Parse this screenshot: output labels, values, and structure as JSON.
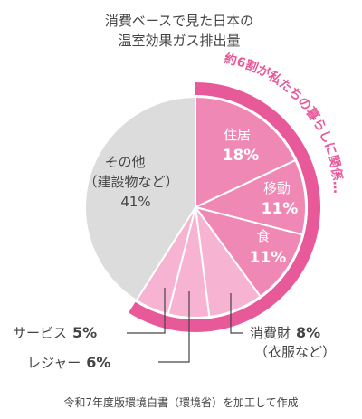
{
  "chart_data": {
    "type": "pie",
    "title": [
      "消費ベースで見た日本の",
      "温室効果ガス排出量"
    ],
    "highlight_label": "約6割が私たちの暮らしに関係…",
    "slices": [
      {
        "label": "住居",
        "value": 18,
        "value_text": "18%",
        "color": "#f088b6"
      },
      {
        "label": "移動",
        "value": 11,
        "value_text": "11%",
        "color": "#f088b6"
      },
      {
        "label": "食",
        "value": 11,
        "value_text": "11%",
        "color": "#f088b6"
      },
      {
        "label": "消費財",
        "value": 8,
        "value_text": "8%",
        "sublabel": "（衣服など）",
        "color": "#f6b4d2"
      },
      {
        "label": "レジャー",
        "value": 6,
        "value_text": "6%",
        "color": "#f6b4d2"
      },
      {
        "label": "サービス",
        "value": 5,
        "value_text": "5%",
        "color": "#f6b4d2"
      },
      {
        "label": "その他",
        "sublabel": "（建設物など）",
        "value": 41,
        "value_text": "41%",
        "color": "#dcdcdc"
      }
    ],
    "source": "令和7年度版環境白書（環境省）を加工して作成"
  }
}
